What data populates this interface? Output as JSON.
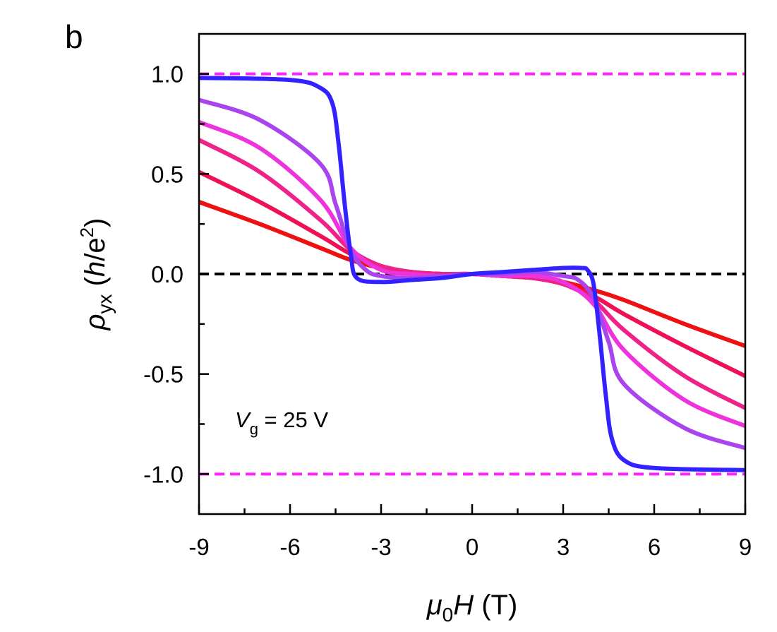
{
  "panel_label": "b",
  "chart_data": {
    "type": "line",
    "xlabel": {
      "symbol": "μ",
      "sub": "0",
      "var": "H",
      "unit": " (T)"
    },
    "ylabel": {
      "symbol": "ρ",
      "sub": "yx",
      "unit_open": " (",
      "unit_h": "h",
      "unit_slash": "/e",
      "unit_sup": "2",
      "unit_close": ")"
    },
    "xlim": [
      -9,
      9
    ],
    "ylim": [
      -1.2,
      1.2
    ],
    "xticks": [
      -9,
      -6,
      -3,
      0,
      3,
      6,
      9
    ],
    "xtick_labels": [
      "-9",
      "-6",
      "-3",
      "0",
      "3",
      "6",
      "9"
    ],
    "yticks": [
      -1.0,
      -0.5,
      0.0,
      0.5,
      1.0
    ],
    "ytick_labels": [
      "-1.0",
      "-0.5",
      "0.0",
      "0.5",
      "1.0"
    ],
    "annotation": {
      "var": "V",
      "sub": "g",
      "text": " = 25 V"
    },
    "reference_lines": [
      {
        "y": 1.0,
        "color": "#ff22ff",
        "style": "dashed"
      },
      {
        "y": -1.0,
        "color": "#ff22ff",
        "style": "dashed"
      },
      {
        "y": 0.0,
        "color": "#000000",
        "style": "dashed"
      }
    ],
    "series": [
      {
        "color": "#ee1111",
        "x": [
          -9,
          -7,
          -5,
          -4,
          -3,
          -2,
          -1,
          0,
          1,
          2,
          3,
          4,
          5,
          7,
          9
        ],
        "y": [
          0.36,
          0.25,
          0.13,
          0.07,
          0.03,
          0.01,
          0.0,
          0.0,
          -0.01,
          -0.02,
          -0.04,
          -0.08,
          -0.13,
          -0.25,
          -0.36
        ]
      },
      {
        "color": "#ee1155",
        "x": [
          -9,
          -7,
          -5,
          -4,
          -3,
          -2,
          -1,
          0,
          1,
          2,
          3,
          4,
          5,
          7,
          9
        ],
        "y": [
          0.51,
          0.36,
          0.19,
          0.1,
          0.04,
          0.01,
          0.0,
          0.0,
          -0.01,
          -0.02,
          -0.05,
          -0.11,
          -0.2,
          -0.36,
          -0.51
        ]
      },
      {
        "color": "#ee2288",
        "x": [
          -9,
          -7,
          -5,
          -4,
          -3,
          -2,
          -1,
          0,
          1,
          2,
          3,
          4,
          5,
          7,
          9
        ],
        "y": [
          0.67,
          0.51,
          0.27,
          0.12,
          0.04,
          0.01,
          0.0,
          0.0,
          -0.01,
          -0.02,
          -0.05,
          -0.13,
          -0.28,
          -0.51,
          -0.67
        ]
      },
      {
        "color": "#ee33dd",
        "x": [
          -9,
          -7,
          -5,
          -4,
          -3,
          -2,
          -1,
          0,
          1,
          2,
          3,
          4,
          5,
          7,
          9
        ],
        "y": [
          0.76,
          0.63,
          0.37,
          0.13,
          0.02,
          0.0,
          -0.01,
          0.0,
          -0.01,
          -0.01,
          -0.04,
          -0.15,
          -0.38,
          -0.63,
          -0.76
        ]
      },
      {
        "color": "#aa44ee",
        "x": [
          -9,
          -7,
          -5,
          -4.5,
          -4,
          -3.5,
          -3,
          -2,
          -1,
          0,
          1,
          2,
          3,
          3.5,
          4,
          4.5,
          5,
          7,
          9
        ],
        "y": [
          0.87,
          0.77,
          0.55,
          0.35,
          0.12,
          0.02,
          -0.01,
          -0.02,
          -0.01,
          0.0,
          0.0,
          0.01,
          -0.01,
          -0.03,
          -0.12,
          -0.34,
          -0.55,
          -0.77,
          -0.87
        ]
      },
      {
        "color": "#3322ff",
        "x": [
          -9,
          -6,
          -5,
          -4.6,
          -4.4,
          -4.2,
          -4.0,
          -3.8,
          -3.0,
          -2.0,
          -1.0,
          0,
          1.0,
          2.0,
          3.0,
          3.6,
          3.8,
          4.0,
          4.2,
          4.4,
          4.6,
          5.0,
          6.0,
          9
        ],
        "y": [
          0.98,
          0.97,
          0.93,
          0.85,
          0.65,
          0.35,
          0.1,
          -0.02,
          -0.04,
          -0.03,
          -0.02,
          0.0,
          0.01,
          0.02,
          0.03,
          0.03,
          0.02,
          -0.05,
          -0.3,
          -0.6,
          -0.82,
          -0.93,
          -0.97,
          -0.98
        ]
      }
    ]
  }
}
